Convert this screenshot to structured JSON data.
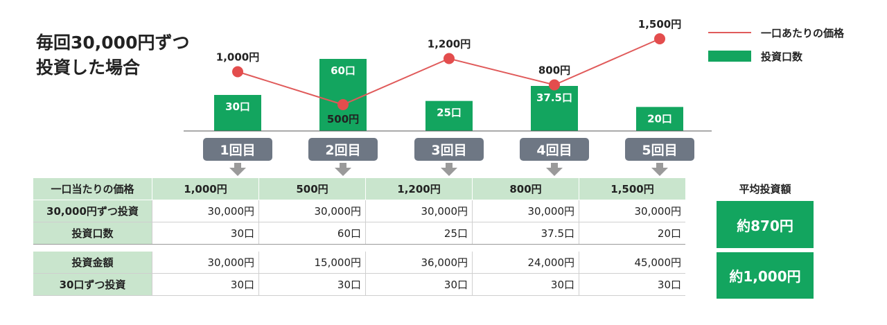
{
  "title_lines": [
    "毎回30,000円ずつ",
    "投資した場合"
  ],
  "legend": {
    "line_label": "一口あたりの価格",
    "bar_label": "投資口数"
  },
  "colors": {
    "line": "#e05a5a",
    "dot": "#e34d4d",
    "bar": "#13a55f",
    "badge": "#6e7784",
    "arrow": "#9a9a9a",
    "header_bg": "#c9e5cd"
  },
  "chart_data": {
    "type": "bar",
    "categories": [
      "1回目",
      "2回目",
      "3回目",
      "4回目",
      "5回目"
    ],
    "series": [
      {
        "name": "投資口数",
        "type": "bar",
        "values": [
          30,
          60,
          25,
          37.5,
          20
        ],
        "labels": [
          "30口",
          "60口",
          "25口",
          "37.5口",
          "20口"
        ]
      },
      {
        "name": "一口あたりの価格",
        "type": "line",
        "values": [
          1000,
          500,
          1200,
          800,
          1500
        ],
        "labels": [
          "1,000円",
          "500円",
          "1,200円",
          "800円",
          "1,500円"
        ]
      }
    ],
    "title": "毎回30,000円ずつ 投資した場合",
    "xlabel": "",
    "ylabel": "",
    "legend_position": "top-right",
    "grid": false
  },
  "table": {
    "header": {
      "label": "一口当たりの価格",
      "cells": [
        "1,000円",
        "500円",
        "1,200円",
        "800円",
        "1,500円"
      ]
    },
    "rows_a": [
      {
        "label": "30,000円ずつ投資",
        "cells": [
          "30,000円",
          "30,000円",
          "30,000円",
          "30,000円",
          "30,000円"
        ]
      },
      {
        "label": "投資口数",
        "cells": [
          "30口",
          "60口",
          "25口",
          "37.5口",
          "20口"
        ]
      }
    ],
    "rows_b": [
      {
        "label": "投資金額",
        "cells": [
          "30,000円",
          "15,000円",
          "36,000円",
          "24,000円",
          "45,000円"
        ]
      },
      {
        "label": "30口ずつ投資",
        "cells": [
          "30口",
          "30口",
          "30口",
          "30口",
          "30口"
        ]
      }
    ]
  },
  "average": {
    "label": "平均投資額",
    "value_a": "約870円",
    "value_b": "約1,000円"
  }
}
